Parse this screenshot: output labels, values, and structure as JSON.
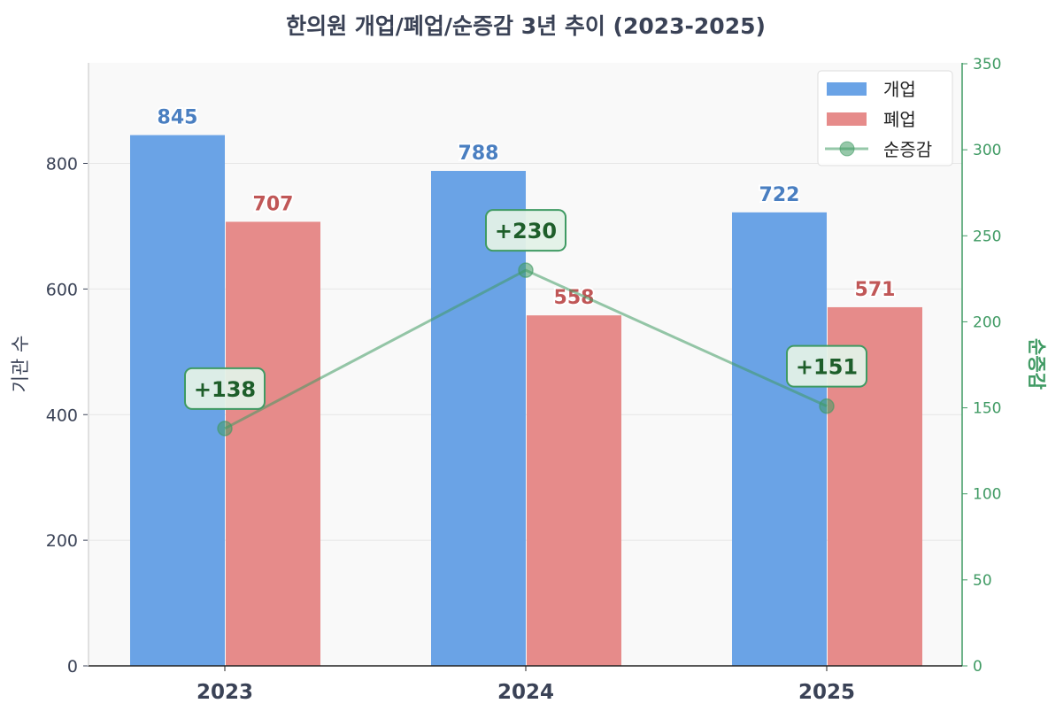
{
  "chart_data": {
    "type": "bar",
    "title": "한의원 개업/폐업/순증감 3년 추이 (2023-2025)",
    "categories": [
      "2023",
      "2024",
      "2025"
    ],
    "series": [
      {
        "name": "개업",
        "type": "bar",
        "axis": "left",
        "values": [
          845,
          788,
          722
        ],
        "color": "#6aa3e6",
        "label_color": "#4a7fc1"
      },
      {
        "name": "폐업",
        "type": "bar",
        "axis": "left",
        "values": [
          707,
          558,
          571
        ],
        "color": "#e68b8a",
        "label_color": "#c05757"
      },
      {
        "name": "순증감",
        "type": "line",
        "axis": "right",
        "values": [
          138,
          230,
          151
        ],
        "labels": [
          "+138",
          "+230",
          "+151"
        ],
        "color": "#3f9a63",
        "label_color": "#1e5e2a"
      }
    ],
    "ylabel": "기관 수",
    "ylabel_right": "순증감",
    "ylim": [
      0,
      960
    ],
    "ylim_right": [
      0,
      350
    ],
    "yticks": [
      "0",
      "200",
      "400",
      "600",
      "800"
    ],
    "yticks_right": [
      "0",
      "50",
      "100",
      "150",
      "200",
      "250",
      "300",
      "350"
    ],
    "grid": true,
    "legend_placement": "top-right"
  }
}
